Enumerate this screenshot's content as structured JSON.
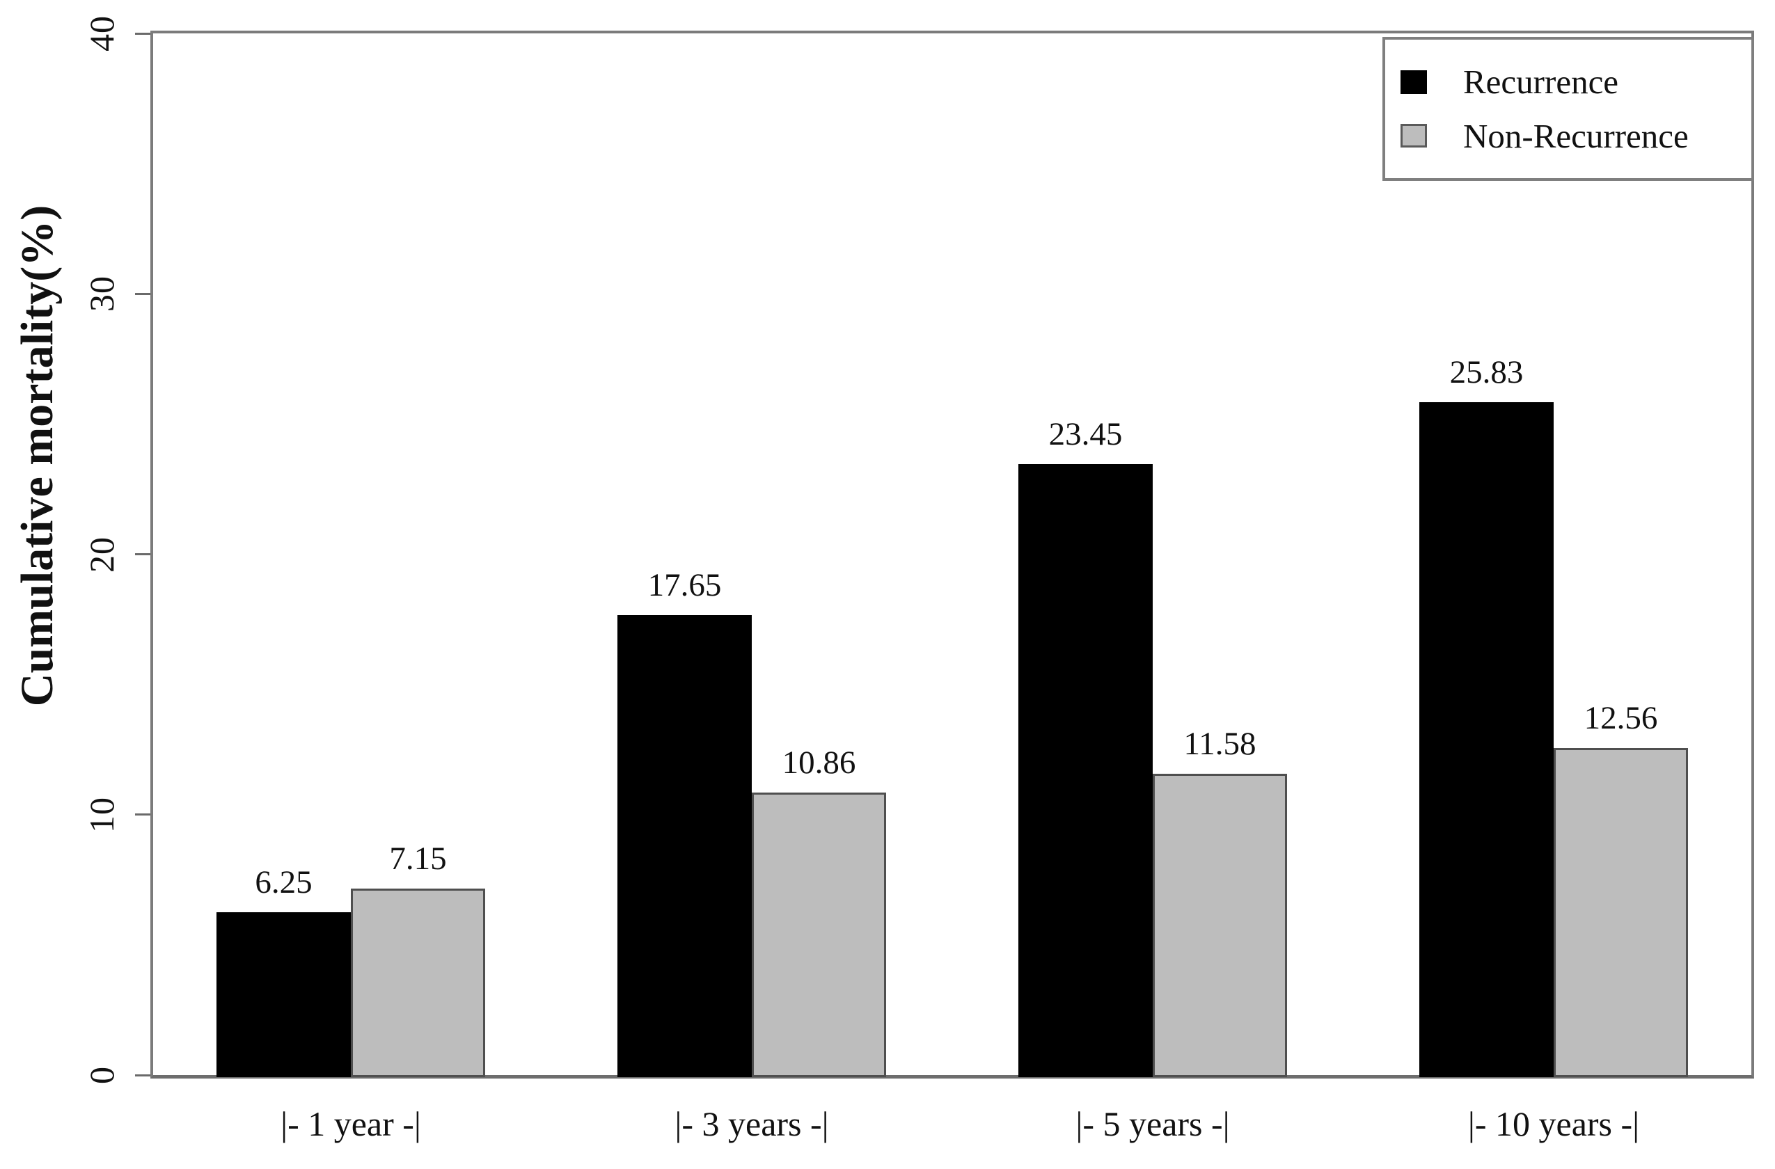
{
  "figure": {
    "background_color": "#ffffff",
    "frame_color": "#7b7b7b",
    "tick_color": "#6a6a6a",
    "text_color": "#111111"
  },
  "chart_data": {
    "type": "bar",
    "title": "",
    "xlabel": "",
    "ylabel": "Cumulative mortality(%)",
    "ylim": [
      0,
      40
    ],
    "yticks": [
      0,
      10,
      20,
      30,
      40
    ],
    "grid": false,
    "value_labels": true,
    "legend_position": "top-right",
    "categories": [
      "|- 1 year -|",
      "|- 3 years -|",
      "|- 5 years -|",
      "|- 10 years -|"
    ],
    "series": [
      {
        "name": "Recurrence",
        "fill_color": "#000000",
        "border_color": "#000000",
        "values": [
          6.25,
          17.65,
          23.45,
          25.83
        ]
      },
      {
        "name": "Non-Recurrence",
        "fill_color": "#bdbdbd",
        "border_color": "#4f4f4f",
        "values": [
          7.15,
          10.86,
          11.58,
          12.56
        ]
      }
    ]
  }
}
